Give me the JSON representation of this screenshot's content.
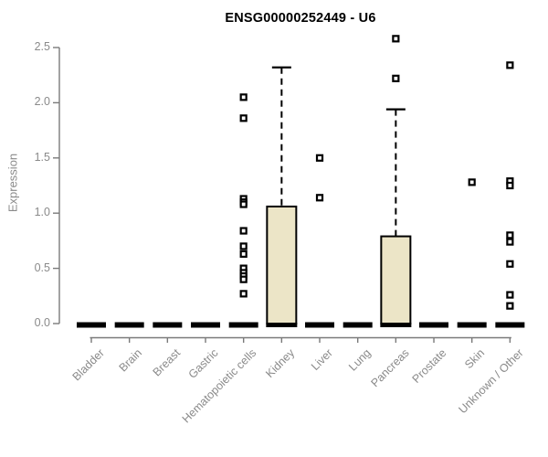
{
  "title": "ENSG00000252449 - U6",
  "chart_data": {
    "type": "boxplot",
    "title": "ENSG00000252449 - U6",
    "xlabel": "",
    "ylabel": "Expression",
    "ylim": [
      0,
      2.5
    ],
    "y_ticks": [
      0.0,
      0.5,
      1.0,
      1.5,
      2.0,
      2.5
    ],
    "y_tick_labels": [
      "0.0",
      "0.5",
      "1.0",
      "1.5",
      "2.0",
      "2.5"
    ],
    "grid": false,
    "legend_position": "none",
    "categories": [
      "Bladder",
      "Brain",
      "Breast",
      "Gastric",
      "Hematopoietic cells",
      "Kidney",
      "Liver",
      "Lung",
      "Pancreas",
      "Prostate",
      "Skin",
      "Unknown / Other"
    ],
    "boxes": [
      {
        "category": "Bladder",
        "q1": 0,
        "median": 0,
        "q3": 0,
        "whisker_low": 0,
        "whisker_high": 0,
        "outliers": []
      },
      {
        "category": "Brain",
        "q1": 0,
        "median": 0,
        "q3": 0,
        "whisker_low": 0,
        "whisker_high": 0,
        "outliers": []
      },
      {
        "category": "Breast",
        "q1": 0,
        "median": 0,
        "q3": 0,
        "whisker_low": 0,
        "whisker_high": 0,
        "outliers": []
      },
      {
        "category": "Gastric",
        "q1": 0,
        "median": 0,
        "q3": 0,
        "whisker_low": 0,
        "whisker_high": 0,
        "outliers": []
      },
      {
        "category": "Hematopoietic cells",
        "q1": 0,
        "median": 0,
        "q3": 0,
        "whisker_low": 0,
        "whisker_high": 0,
        "outliers": [
          2.05,
          1.86,
          1.13,
          1.1,
          1.08,
          0.84,
          0.7,
          0.63,
          0.5,
          0.46,
          0.43,
          0.4,
          0.27
        ]
      },
      {
        "category": "Kidney",
        "q1": 0,
        "median": 0,
        "q3": 1.06,
        "whisker_low": 0,
        "whisker_high": 2.32,
        "outliers": []
      },
      {
        "category": "Liver",
        "q1": 0,
        "median": 0,
        "q3": 0,
        "whisker_low": 0,
        "whisker_high": 0,
        "outliers": [
          1.5,
          1.14
        ]
      },
      {
        "category": "Lung",
        "q1": 0,
        "median": 0,
        "q3": 0,
        "whisker_low": 0,
        "whisker_high": 0,
        "outliers": []
      },
      {
        "category": "Pancreas",
        "q1": 0,
        "median": 0,
        "q3": 0.79,
        "whisker_low": 0,
        "whisker_high": 1.94,
        "outliers": [
          2.58,
          2.22
        ]
      },
      {
        "category": "Prostate",
        "q1": 0,
        "median": 0,
        "q3": 0,
        "whisker_low": 0,
        "whisker_high": 0,
        "outliers": []
      },
      {
        "category": "Skin",
        "q1": 0,
        "median": 0,
        "q3": 0,
        "whisker_low": 0,
        "whisker_high": 0,
        "outliers": [
          1.28
        ]
      },
      {
        "category": "Unknown / Other",
        "q1": 0,
        "median": 0,
        "q3": 0,
        "whisker_low": 0,
        "whisker_high": 0,
        "outliers": [
          2.34,
          1.29,
          1.25,
          0.8,
          0.74,
          0.54,
          0.26,
          0.16
        ]
      }
    ],
    "colors": {
      "box_fill": "#ece5c7",
      "box_stroke": "#000000",
      "outlier_stroke": "#000000",
      "outlier_fill": "#ffffff",
      "axis_line": "#7a7a7a",
      "tick_text": "#8a8a8a",
      "title_text": "#000000",
      "background": "#ffffff"
    }
  }
}
